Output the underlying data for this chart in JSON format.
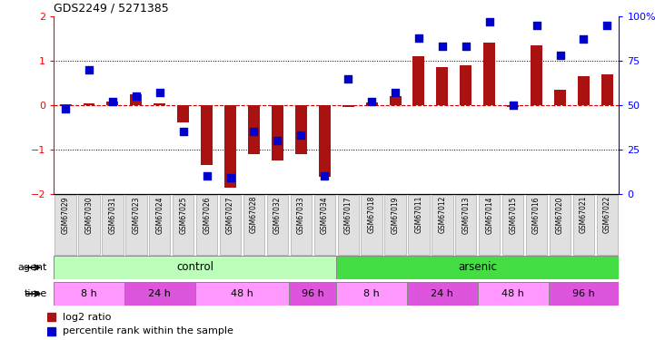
{
  "title": "GDS2249 / 5271385",
  "samples": [
    "GSM67029",
    "GSM67030",
    "GSM67031",
    "GSM67023",
    "GSM67024",
    "GSM67025",
    "GSM67026",
    "GSM67027",
    "GSM67028",
    "GSM67032",
    "GSM67033",
    "GSM67034",
    "GSM67017",
    "GSM67018",
    "GSM67019",
    "GSM67011",
    "GSM67012",
    "GSM67013",
    "GSM67014",
    "GSM67015",
    "GSM67016",
    "GSM67020",
    "GSM67021",
    "GSM67022"
  ],
  "log2_ratio": [
    0.02,
    0.05,
    0.08,
    0.25,
    0.05,
    -0.38,
    -1.35,
    -1.85,
    -1.1,
    -1.25,
    -1.1,
    -1.62,
    -0.05,
    0.06,
    0.2,
    1.1,
    0.85,
    0.9,
    1.4,
    -0.05,
    1.35,
    0.35,
    0.65,
    0.7
  ],
  "percentile": [
    48,
    70,
    52,
    55,
    57,
    35,
    10,
    9,
    35,
    30,
    33,
    10,
    65,
    52,
    57,
    88,
    83,
    83,
    97,
    50,
    95,
    78,
    87,
    95
  ],
  "agent_groups": [
    {
      "label": "control",
      "start": 0,
      "end": 11,
      "color": "#BBFFBB"
    },
    {
      "label": "arsenic",
      "start": 12,
      "end": 23,
      "color": "#44DD44"
    }
  ],
  "time_groups": [
    {
      "label": "8 h",
      "start": 0,
      "end": 2,
      "color": "#FF99FF"
    },
    {
      "label": "24 h",
      "start": 3,
      "end": 5,
      "color": "#DD55DD"
    },
    {
      "label": "48 h",
      "start": 6,
      "end": 9,
      "color": "#FF99FF"
    },
    {
      "label": "96 h",
      "start": 10,
      "end": 11,
      "color": "#DD55DD"
    },
    {
      "label": "8 h",
      "start": 12,
      "end": 14,
      "color": "#FF99FF"
    },
    {
      "label": "24 h",
      "start": 15,
      "end": 17,
      "color": "#DD55DD"
    },
    {
      "label": "48 h",
      "start": 18,
      "end": 20,
      "color": "#FF99FF"
    },
    {
      "label": "96 h",
      "start": 21,
      "end": 23,
      "color": "#DD55DD"
    }
  ],
  "bar_color": "#AA1111",
  "dot_color": "#0000CC",
  "ylim_left": [
    -2,
    2
  ],
  "ylim_right": [
    0,
    100
  ],
  "yticks_left": [
    -2,
    -1,
    0,
    1,
    2
  ],
  "yticks_right": [
    0,
    25,
    50,
    75,
    100
  ],
  "bar_width": 0.5,
  "dot_size": 28
}
